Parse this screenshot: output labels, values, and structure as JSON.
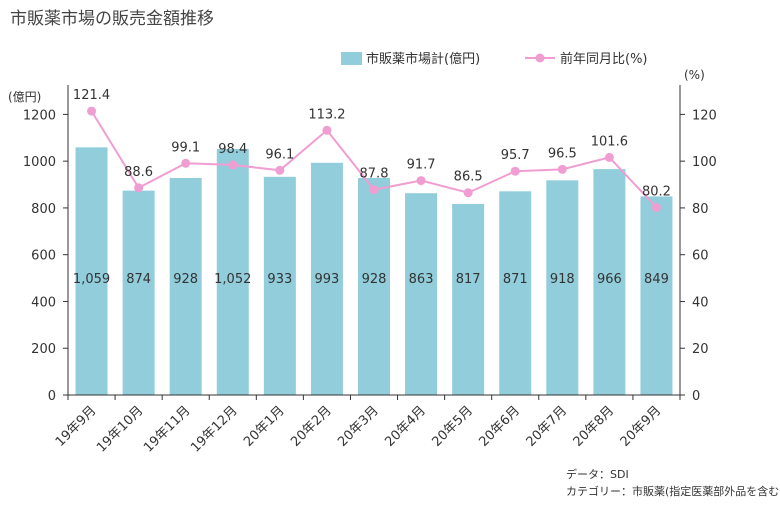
{
  "chart_data": {
    "type": "bar",
    "title": "市販薬市場の販売金額推移",
    "categories": [
      "19年9月",
      "19年10月",
      "19年11月",
      "19年12月",
      "20年1月",
      "20年2月",
      "20年3月",
      "20年4月",
      "20年5月",
      "20年6月",
      "20年7月",
      "20年8月",
      "20年9月"
    ],
    "series": [
      {
        "name": "市販薬市場計(億円)",
        "type": "bar",
        "axis": "left",
        "values": [
          1059,
          874,
          928,
          1052,
          933,
          993,
          928,
          863,
          817,
          871,
          918,
          966,
          849
        ],
        "labels": [
          "1,059",
          "874",
          "928",
          "1,052",
          "933",
          "993",
          "928",
          "863",
          "817",
          "871",
          "918",
          "966",
          "849"
        ],
        "color": "#92cddc"
      },
      {
        "name": "前年同月比(%)",
        "type": "line",
        "axis": "right",
        "values": [
          121.4,
          88.6,
          99.1,
          98.4,
          96.1,
          113.2,
          87.8,
          91.7,
          86.5,
          95.7,
          96.5,
          101.6,
          80.2
        ],
        "labels": [
          "121.4",
          "88.6",
          "99.1",
          "98.4",
          "96.1",
          "113.2",
          "87.8",
          "91.7",
          "86.5",
          "95.7",
          "96.5",
          "101.6",
          "80.2"
        ],
        "color": "#f09ed2"
      }
    ],
    "y_left": {
      "unit": "(億円)",
      "ylim": [
        0,
        1300
      ],
      "ticks": [
        0,
        200,
        400,
        600,
        800,
        1000,
        1200
      ]
    },
    "y_right": {
      "unit": "(%)",
      "ylim": [
        0,
        130
      ],
      "ticks": [
        0,
        20,
        40,
        60,
        80,
        100,
        120
      ]
    },
    "legend_position": "top-right",
    "grid": false,
    "source": "データ：SDI",
    "category_note": "カテゴリー：市販薬(指定医薬部外品を含む)"
  }
}
